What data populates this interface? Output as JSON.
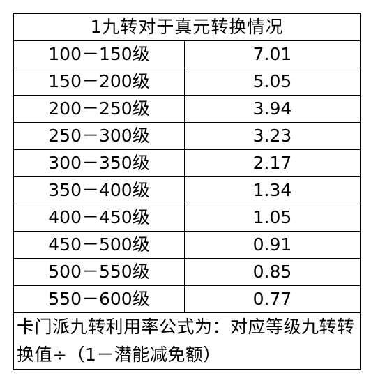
{
  "table": {
    "title": "1九转对于真元转换情况",
    "rows": [
      [
        "100－150级",
        "7.01"
      ],
      [
        "150－200级",
        "5.05"
      ],
      [
        "200－250级",
        "3.94"
      ],
      [
        "250－300级",
        "3.23"
      ],
      [
        "300－350级",
        "2.17"
      ],
      [
        "350－400级",
        "1.34"
      ],
      [
        "400－450级",
        "1.05"
      ],
      [
        "450－500级",
        "0.91"
      ],
      [
        "500－550级",
        "0.85"
      ],
      [
        "550－600级",
        "0.77"
      ]
    ],
    "footer": "卡门派九转利用率公式为：对应等级九转转换值÷（1－潜能减免额）"
  }
}
